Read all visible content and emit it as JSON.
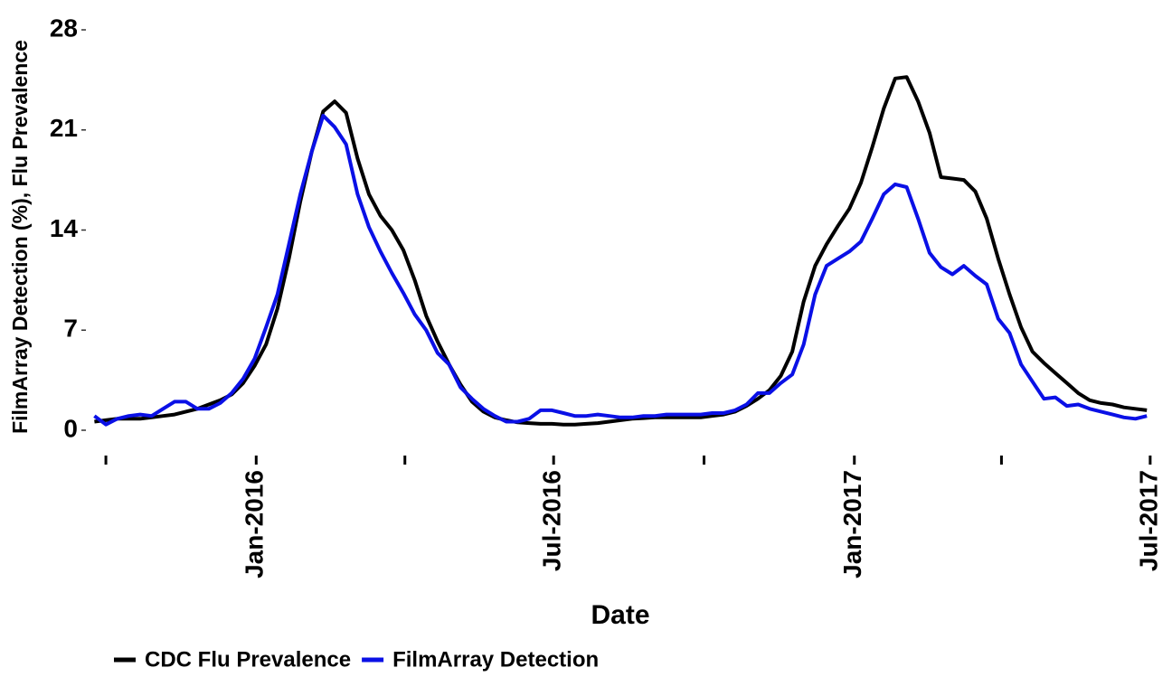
{
  "chart_data": {
    "type": "line",
    "x_label": "Date",
    "y_label": "FilmArray Detection (%), Flu Prevalence",
    "x": [
      -1,
      0,
      1,
      2,
      3,
      4,
      5,
      6,
      7,
      8,
      9,
      10,
      11,
      12,
      13,
      14,
      15,
      16,
      17,
      18,
      19,
      20,
      21,
      22,
      23,
      24,
      25,
      26,
      27,
      28,
      29,
      30,
      31,
      32,
      33,
      34,
      35,
      36,
      37,
      38,
      39,
      40,
      41,
      42,
      43,
      44,
      45,
      46,
      47,
      48,
      49,
      50,
      51,
      52,
      53,
      54,
      55,
      56,
      57,
      58,
      59,
      60,
      61,
      62,
      63,
      64,
      65,
      66,
      67,
      68,
      69,
      70,
      71,
      72,
      73,
      74,
      75,
      76,
      77,
      78,
      79,
      80,
      81,
      82,
      83,
      84,
      85,
      86,
      87,
      88,
      89,
      90,
      91
    ],
    "series": [
      {
        "name": "CDC Flu Prevalence",
        "color": "#000000",
        "values": [
          0.6,
          0.7,
          0.8,
          0.8,
          0.8,
          0.9,
          1.0,
          1.1,
          1.3,
          1.5,
          1.8,
          2.1,
          2.5,
          3.3,
          4.5,
          6.0,
          8.5,
          12,
          16,
          19.5,
          22.3,
          23,
          22.2,
          19,
          16.5,
          15,
          14,
          12.6,
          10.5,
          8,
          6.2,
          4.6,
          3.2,
          2.0,
          1.3,
          0.9,
          0.7,
          0.55,
          0.5,
          0.45,
          0.45,
          0.4,
          0.4,
          0.45,
          0.5,
          0.6,
          0.7,
          0.8,
          0.85,
          0.9,
          0.9,
          0.9,
          0.9,
          0.9,
          1.0,
          1.1,
          1.3,
          1.7,
          2.2,
          2.8,
          3.8,
          5.5,
          9,
          11.5,
          13,
          14.3,
          15.5,
          17.3,
          19.8,
          22.5,
          24.6,
          24.7,
          23,
          20.8,
          17.7,
          17.6,
          17.5,
          16.7,
          14.8,
          12,
          9.5,
          7.2,
          5.5,
          4.7,
          4.0,
          3.3,
          2.6,
          2.1,
          1.9,
          1.8,
          1.6,
          1.5,
          1.4
        ]
      },
      {
        "name": "FilmArray Detection",
        "color": "#0a10e6",
        "values": [
          1.0,
          0.4,
          0.8,
          1.0,
          1.1,
          1.0,
          1.5,
          2.0,
          2.0,
          1.5,
          1.5,
          1.9,
          2.6,
          3.6,
          5.0,
          7.2,
          9.5,
          13,
          16.5,
          19.5,
          22,
          21.2,
          20,
          16.5,
          14.2,
          12.5,
          11,
          9.6,
          8.1,
          7,
          5.4,
          4.6,
          3.0,
          2.2,
          1.5,
          1.0,
          0.6,
          0.6,
          0.8,
          1.4,
          1.4,
          1.2,
          1.0,
          1.0,
          1.1,
          1.0,
          0.9,
          0.9,
          1.0,
          1.0,
          1.1,
          1.1,
          1.1,
          1.1,
          1.2,
          1.2,
          1.4,
          1.8,
          2.6,
          2.6,
          3.3,
          3.9,
          6,
          9.5,
          11.5,
          12,
          12.5,
          13.2,
          14.8,
          16.5,
          17.2,
          17,
          14.8,
          12.4,
          11.4,
          10.9,
          11.5,
          10.8,
          10.2,
          7.8,
          6.8,
          4.6,
          3.4,
          2.2,
          2.3,
          1.7,
          1.8,
          1.5,
          1.3,
          1.1,
          0.9,
          0.8,
          1.0
        ]
      }
    ],
    "xlim": [
      -1.35,
      91.3
    ],
    "xticks": [
      {
        "value": 0,
        "label": null
      },
      {
        "value": 13.14,
        "label": "Jan-2016"
      },
      {
        "value": 26.14,
        "label": null
      },
      {
        "value": 39.14,
        "label": "Jul-2016"
      },
      {
        "value": 52.29,
        "label": null
      },
      {
        "value": 65.43,
        "label": "Jan-2017"
      },
      {
        "value": 78.29,
        "label": null
      },
      {
        "value": 91.29,
        "label": "Jul-2017"
      }
    ],
    "ylim": [
      0,
      28
    ],
    "yticks": [
      0,
      7,
      14,
      21,
      28
    ],
    "grid": false,
    "legend": "bottom"
  }
}
